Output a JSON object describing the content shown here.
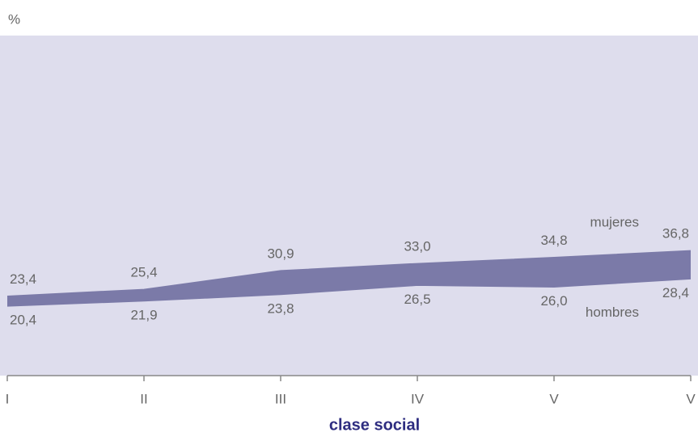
{
  "chart_data": {
    "type": "range-area",
    "title": "%",
    "x_label": "clase social",
    "categories": [
      "I",
      "II",
      "III",
      "IV",
      "V",
      "V"
    ],
    "series": [
      {
        "name": "mujeres",
        "values": [
          23.4,
          25.4,
          30.9,
          33.0,
          34.8,
          36.8
        ],
        "value_labels": [
          "23,4",
          "25,4",
          "30,9",
          "33,0",
          "34,8",
          "36,8"
        ]
      },
      {
        "name": "hombres",
        "values": [
          20.4,
          21.9,
          23.8,
          26.5,
          26.0,
          28.4
        ],
        "value_labels": [
          "20,4",
          "21,9",
          "23,8",
          "26,5",
          "26,0",
          "28,4"
        ]
      }
    ],
    "color": "#7b7aa8",
    "ylim": [
      0,
      100
    ]
  }
}
